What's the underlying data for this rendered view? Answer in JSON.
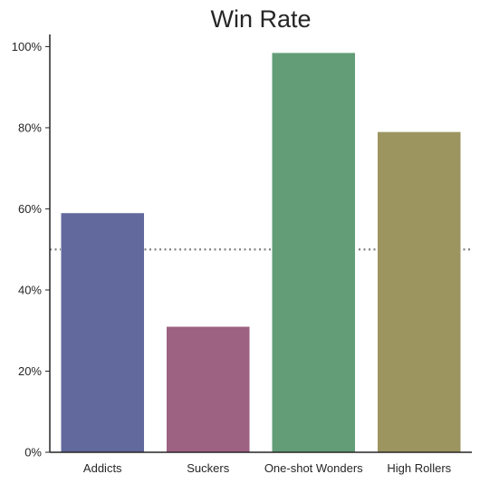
{
  "chart_data": {
    "type": "bar",
    "title": "Win Rate",
    "xlabel": "",
    "ylabel": "",
    "categories": [
      "Addicts",
      "Suckers",
      "One-shot Wonders",
      "High Rollers"
    ],
    "values": [
      0.59,
      0.31,
      0.985,
      0.79
    ],
    "colors": [
      "#62699c",
      "#9d6182",
      "#629d78",
      "#9d9560"
    ],
    "ylim": [
      0,
      1.03
    ],
    "yticks": [
      0,
      0.2,
      0.4,
      0.6,
      0.8,
      1.0
    ],
    "ytick_labels": [
      "0%",
      "20%",
      "40%",
      "60%",
      "80%",
      "100%"
    ],
    "reference_line": {
      "value": 0.5,
      "style": "dotted",
      "color": "#808080"
    },
    "grid": false,
    "legend": "none"
  }
}
